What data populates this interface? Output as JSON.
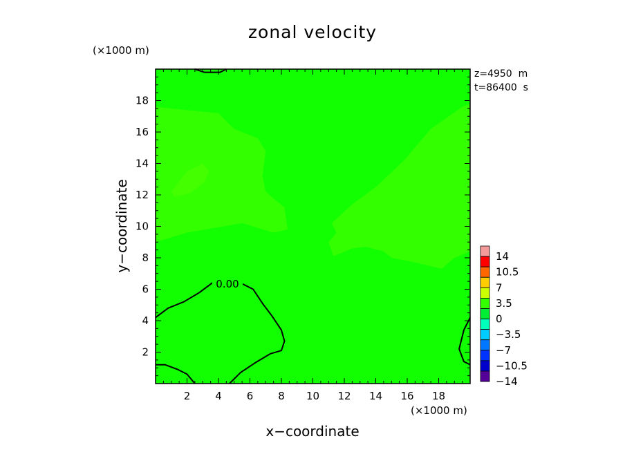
{
  "chart_data": {
    "type": "heatmap",
    "title": "zonal velocity",
    "xlabel": "x−coordinate",
    "ylabel": "y−coordinate",
    "x_unit": "(×1000 m)",
    "y_unit": "(×1000 m)",
    "xlim": [
      0,
      20
    ],
    "ylim": [
      0,
      20
    ],
    "xticks": [
      2,
      4,
      6,
      8,
      10,
      12,
      14,
      16,
      18
    ],
    "yticks": [
      2,
      4,
      6,
      8,
      10,
      12,
      14,
      16,
      18
    ],
    "xtick_labels": [
      "2",
      "4",
      "6",
      "8",
      "10",
      "12",
      "14",
      "16",
      "18"
    ],
    "ytick_labels": [
      "2",
      "4",
      "6",
      "8",
      "10",
      "12",
      "14",
      "16",
      "18"
    ],
    "info": [
      "z=4950  m",
      "t=86400  s"
    ],
    "contour_label": "0.00",
    "colorbar": {
      "labels": [
        "14",
        "10.5",
        "7",
        "3.5",
        "0",
        "−3.5",
        "−7",
        "−10.5",
        "−14"
      ],
      "colors": [
        "#f59a9a",
        "#ff0000",
        "#ff6600",
        "#ffcc00",
        "#ccff00",
        "#33ff00",
        "#00ee33",
        "#00ffbb",
        "#00ccff",
        "#0077ff",
        "#0033ff",
        "#0000cc",
        "#550099"
      ]
    },
    "background_color": "#11ff00",
    "positive_region_color": "#33ff00",
    "stronger_region_color": "#44ff00",
    "contour_level": 0,
    "positive_regions": [
      [
        [
          0,
          17.6
        ],
        [
          2,
          17.4
        ],
        [
          4,
          17.2
        ],
        [
          5,
          16.2
        ],
        [
          6.5,
          15.6
        ],
        [
          7,
          14.8
        ],
        [
          6.8,
          13.2
        ],
        [
          7,
          12.2
        ],
        [
          8.2,
          11.2
        ],
        [
          8.4,
          9.8
        ],
        [
          7.5,
          9.6
        ],
        [
          5.5,
          10.2
        ],
        [
          2,
          9.6
        ],
        [
          0,
          9
        ]
      ],
      [
        [
          11.2,
          10.2
        ],
        [
          12.5,
          11.4
        ],
        [
          14,
          12.5
        ],
        [
          15.8,
          14.2
        ],
        [
          17.5,
          16.2
        ],
        [
          19.5,
          17.6
        ],
        [
          20,
          17.8
        ],
        [
          20,
          8.4
        ],
        [
          19,
          8
        ],
        [
          18.2,
          7.3
        ],
        [
          16.5,
          7.7
        ],
        [
          15,
          8
        ],
        [
          14.5,
          8.4
        ],
        [
          13.4,
          8.7
        ],
        [
          12.5,
          8.6
        ],
        [
          11.3,
          8.1
        ],
        [
          11,
          9
        ],
        [
          11.5,
          9.6
        ]
      ]
    ],
    "stronger_region": [
      [
        1,
        12.2
      ],
      [
        2,
        13.5
      ],
      [
        3,
        14
      ],
      [
        3.4,
        13.5
      ],
      [
        3.1,
        12.8
      ],
      [
        2.2,
        12.1
      ],
      [
        1.2,
        11.9
      ]
    ],
    "zero_contours": [
      [
        [
          0,
          4.2
        ],
        [
          0.8,
          4.8
        ],
        [
          1.8,
          5.2
        ],
        [
          2.8,
          5.8
        ],
        [
          3.6,
          6.4
        ],
        [
          4.4,
          6.5
        ],
        [
          5.4,
          6.4
        ],
        [
          6.2,
          6
        ],
        [
          6.8,
          5.1
        ],
        [
          7.4,
          4.3
        ],
        [
          8,
          3.4
        ],
        [
          8.2,
          2.7
        ],
        [
          8,
          2.1
        ],
        [
          7.3,
          1.9
        ],
        [
          6.3,
          1.3
        ],
        [
          5.4,
          0.7
        ],
        [
          4.7,
          0
        ]
      ],
      [
        [
          0,
          1.2
        ],
        [
          0.6,
          1.2
        ],
        [
          1.4,
          0.9
        ],
        [
          2,
          0.6
        ],
        [
          2.5,
          0
        ]
      ],
      [
        [
          2.5,
          20
        ],
        [
          3.1,
          19.8
        ],
        [
          4.1,
          19.8
        ],
        [
          4.5,
          20
        ]
      ],
      [
        [
          20,
          4.2
        ],
        [
          19.6,
          3.4
        ],
        [
          19.3,
          2.2
        ],
        [
          19.6,
          1.4
        ],
        [
          20,
          1.2
        ]
      ]
    ]
  }
}
